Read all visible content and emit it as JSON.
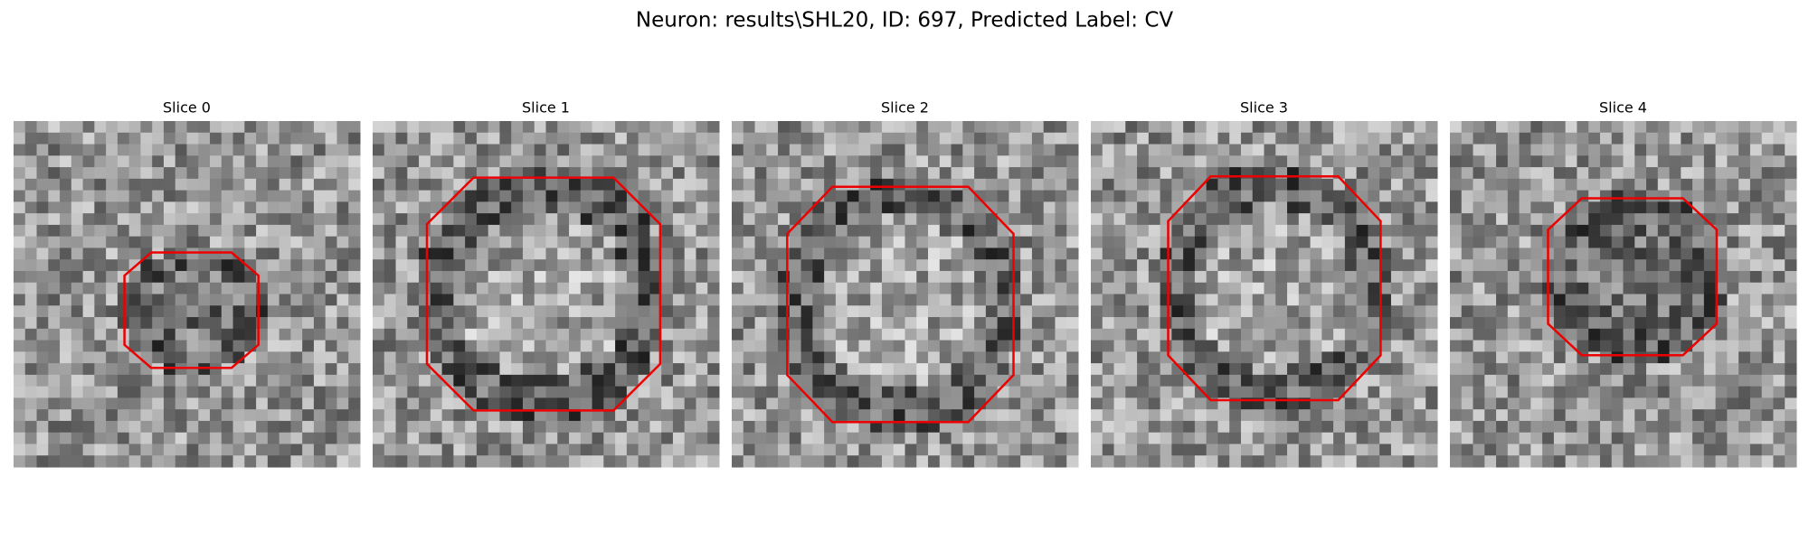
{
  "header": {
    "title": "Neuron: results\\SHL20, ID: 697, Predicted Label: CV"
  },
  "panels": [
    {
      "title": "Slice 0"
    },
    {
      "title": "Slice 1"
    },
    {
      "title": "Slice 2"
    },
    {
      "title": "Slice 3"
    },
    {
      "title": "Slice 4"
    }
  ]
}
